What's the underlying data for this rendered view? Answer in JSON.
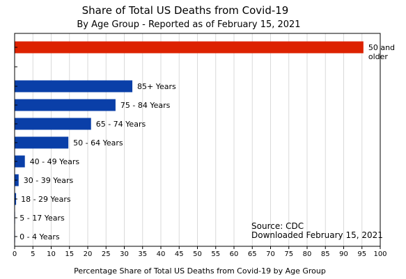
{
  "chart_data": {
    "type": "bar",
    "orientation": "horizontal",
    "title": "Share of Total US Deaths from Covid-19",
    "subtitle": "By Age Group - Reported as of February 15, 2021",
    "xlabel": "Percentage Share of Total US Deaths from Covid-19 by Age Group",
    "ylabel": "",
    "xlim": [
      0,
      100
    ],
    "xticks": [
      0,
      5,
      10,
      15,
      20,
      25,
      30,
      35,
      40,
      45,
      50,
      55,
      60,
      65,
      70,
      75,
      80,
      85,
      90,
      95,
      100
    ],
    "grid": true,
    "categories": [
      "50 and older",
      "85+ Years",
      "75 - 84 Years",
      "65 - 74 Years",
      "50 - 64 Years",
      "40 - 49 Years",
      "30 - 39 Years",
      "18 - 29 Years",
      "5 - 17 Years",
      "0 - 4 Years"
    ],
    "label_lines": [
      [
        "50 and",
        "older"
      ],
      [
        "85+ Years"
      ],
      [
        "75 - 84 Years"
      ],
      [
        "65 - 74 Years"
      ],
      [
        "50 - 64 Years"
      ],
      [
        "40 - 49 Years"
      ],
      [
        "30 - 39 Years"
      ],
      [
        "18 - 29 Years"
      ],
      [
        "5 - 17 Years"
      ],
      [
        "0 - 4 Years"
      ]
    ],
    "values": [
      95.4,
      32.2,
      27.6,
      20.9,
      14.7,
      2.8,
      1.1,
      0.4,
      0.05,
      0.02
    ],
    "colors": [
      "#dd2200",
      "#0a3fa8",
      "#0a3fa8",
      "#0a3fa8",
      "#0a3fa8",
      "#0a3fa8",
      "#0a3fa8",
      "#0a3fa8",
      "#0a3fa8",
      "#0a3fa8"
    ],
    "annotation": {
      "lines": [
        "Source:  CDC",
        "Downloaded February 15, 2021"
      ]
    }
  }
}
